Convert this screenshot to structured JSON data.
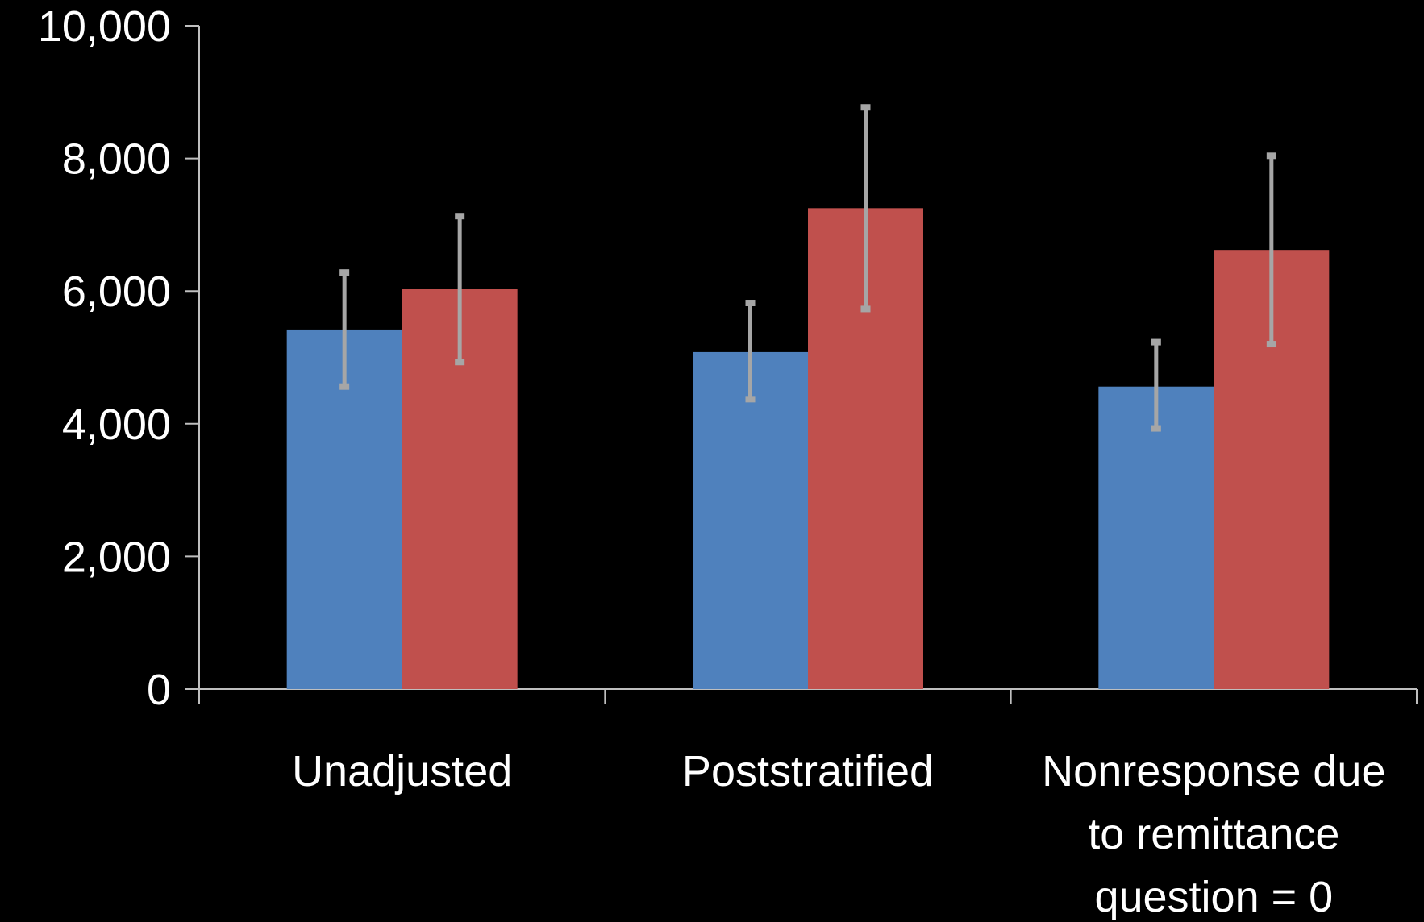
{
  "chart_data": {
    "type": "bar",
    "title": "",
    "xlabel": "",
    "ylabel": "",
    "ylim": [
      0,
      10000
    ],
    "yticks": [
      0,
      2000,
      4000,
      6000,
      8000,
      10000
    ],
    "ytick_labels": [
      "0",
      "2,000",
      "4,000",
      "6,000",
      "8,000",
      "10,000"
    ],
    "grid": false,
    "legend": "none",
    "categories": [
      [
        "Unadjusted"
      ],
      [
        "Poststratified"
      ],
      [
        "Nonresponse due",
        "to remittance",
        "question = 0"
      ]
    ],
    "series": [
      {
        "color": "#4f81bd",
        "values": [
          5420,
          5080,
          4560
        ],
        "error_low": [
          4560,
          4370,
          3930
        ],
        "error_high": [
          6280,
          5820,
          5230
        ]
      },
      {
        "color": "#c0504d",
        "values": [
          6030,
          7250,
          6620
        ],
        "error_low": [
          4930,
          5730,
          5200
        ],
        "error_high": [
          7130,
          8770,
          8040
        ]
      }
    ],
    "error_bar_color": "#a6a6a6",
    "axis_color": "#bfbfbf"
  }
}
